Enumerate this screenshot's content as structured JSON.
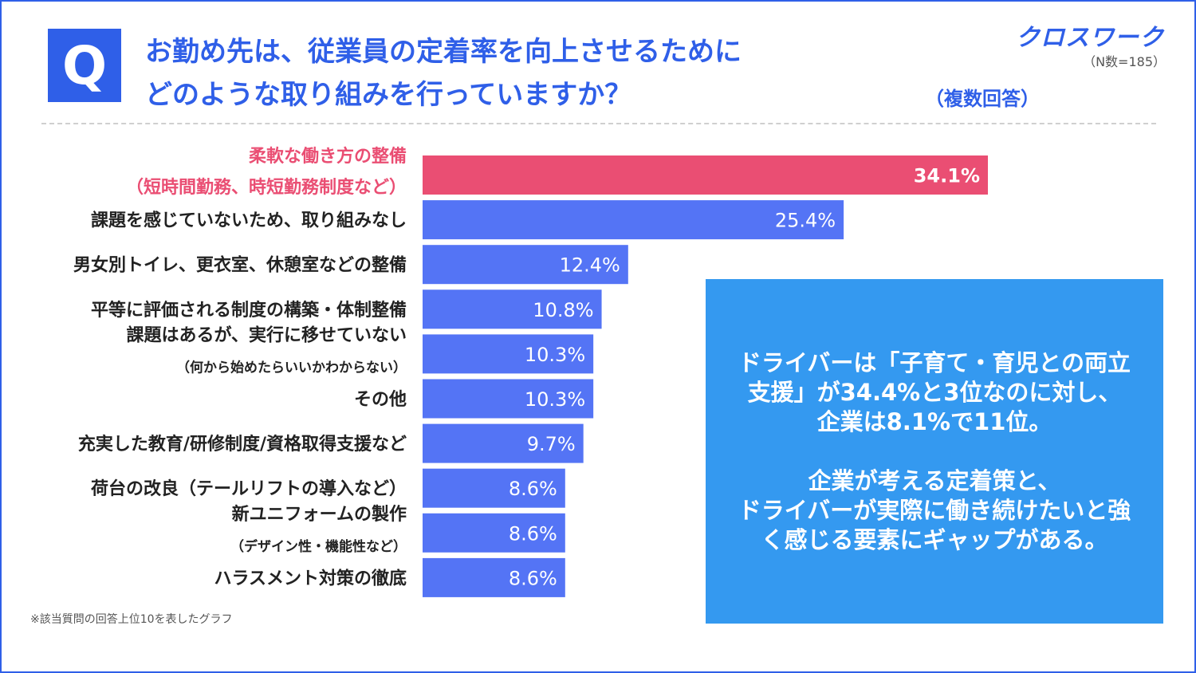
{
  "title_lines": [
    "お勤め先は、従業員の定着率を向上させるために",
    "どのような取り組みを行っていますか？"
  ],
  "q_mark": "Q",
  "brand": "クロスワーク",
  "sample_size": "（N数=185）",
  "answer_type": "（複数回答）",
  "footnote": "※該当質問の回答上位10を表したグラフ",
  "callout": {
    "para1": [
      "ドライバーは「子育て・育児との両立",
      "支援」が34.4%と3位なのに対し、",
      "企業は8.1%で11位。"
    ],
    "para2": [
      "企業が考える定着策と、",
      "ドライバーが実際に働き続けたいと強",
      "く感じる要素にギャップがある。"
    ]
  },
  "colors": {
    "highlight_bar": "#ea4e73",
    "bar": "#5474f5",
    "highlight_label": "#ea4e73",
    "label": "#222222",
    "title": "#2f5fe8",
    "callout_bg": "#3499f0"
  },
  "chart_data": {
    "type": "bar",
    "orientation": "horizontal",
    "categories": [
      {
        "lines": [
          "柔軟な働き方の整備",
          "（短時間勤務、時短勤務制度など）"
        ],
        "highlight": true
      },
      {
        "lines": [
          "課題を感じていないため、取り組みなし"
        ]
      },
      {
        "lines": [
          "男女別トイレ、更衣室、休憩室などの整備"
        ]
      },
      {
        "lines": [
          "平等に評価される制度の構築・体制整備"
        ]
      },
      {
        "lines": [
          "課題はあるが、実行に移せていない",
          "（何から始めたらいいかわからない）"
        ]
      },
      {
        "lines": [
          "その他"
        ]
      },
      {
        "lines": [
          "充実した教育/研修制度/資格取得支援など"
        ]
      },
      {
        "lines": [
          "荷台の改良（テールリフトの導入など）"
        ]
      },
      {
        "lines": [
          "新ユニフォームの製作",
          "（デザイン性・機能性など）"
        ]
      },
      {
        "lines": [
          "ハラスメント対策の徹底"
        ]
      }
    ],
    "values": [
      34.1,
      25.4,
      12.4,
      10.8,
      10.3,
      10.3,
      9.7,
      8.6,
      8.6,
      8.6
    ],
    "value_labels": [
      "34.1%",
      "25.4%",
      "12.4%",
      "10.8%",
      "10.3%",
      "10.3%",
      "9.7%",
      "8.6%",
      "8.6%",
      "8.6%"
    ],
    "unit": "%",
    "xlim": [
      0,
      34.1
    ]
  }
}
